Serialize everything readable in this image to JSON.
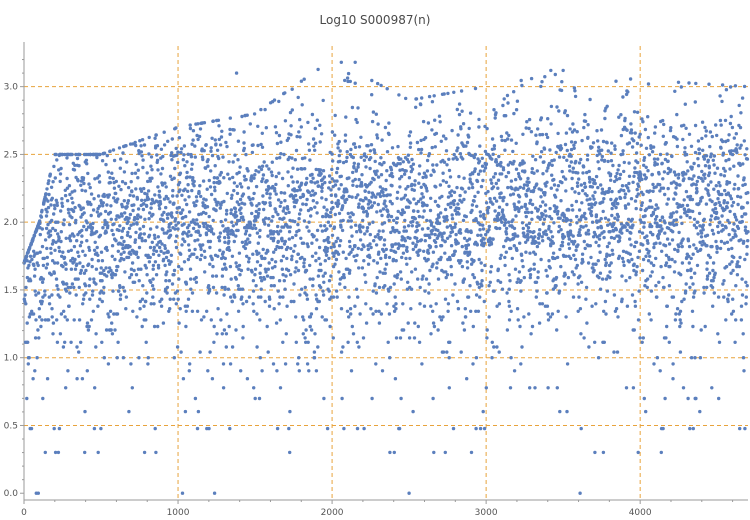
{
  "chart_data": {
    "type": "scatter",
    "title": "Log10 S000987(n)",
    "xlabel": "",
    "ylabel": "",
    "xlim": [
      0,
      4700
    ],
    "ylim": [
      -0.05,
      3.3
    ],
    "x_ticks": [
      0,
      1000,
      2000,
      3000,
      4000
    ],
    "x_tick_labels": [
      "0",
      "1000",
      "2000",
      "3000",
      "4000"
    ],
    "y_ticks": [
      0.0,
      0.5,
      1.0,
      1.5,
      2.0,
      2.5,
      3.0
    ],
    "y_tick_labels": [
      "0.0",
      "0.5",
      "1.0",
      "1.5",
      "2.0",
      "2.5",
      "3.0"
    ],
    "grid": true,
    "grid_x": [
      1000,
      2000,
      3000,
      4000
    ],
    "grid_y": [
      0.5,
      1.0,
      1.5,
      2.0,
      2.5,
      3.0
    ],
    "marker_color": "#5b7fbd",
    "grid_color": "#e8a33c",
    "n_points": 4700,
    "series": [
      {
        "values_summary": "one point per n = 1..4700; dense band between about 1.5 and 2.5 rising slowly with n, sparse points down to 0.0 and up to about 3.2",
        "y_envelope": [
          {
            "x": 0,
            "low": 0.0,
            "high": 1.7
          },
          {
            "x": 100,
            "low": 0.0,
            "high": 2.0
          },
          {
            "x": 200,
            "low": 0.3,
            "high": 2.5
          },
          {
            "x": 500,
            "low": 0.3,
            "high": 2.5
          },
          {
            "x": 1000,
            "low": 0.0,
            "high": 2.7
          },
          {
            "x": 1500,
            "low": 0.3,
            "high": 2.8
          },
          {
            "x": 2000,
            "low": 0.3,
            "high": 3.2
          },
          {
            "x": 2500,
            "low": 0.0,
            "high": 2.9
          },
          {
            "x": 3000,
            "low": 0.3,
            "high": 3.0
          },
          {
            "x": 3500,
            "low": 0.0,
            "high": 3.1
          },
          {
            "x": 4000,
            "low": 0.3,
            "high": 3.05
          },
          {
            "x": 4700,
            "low": 0.3,
            "high": 3.0
          }
        ],
        "outliers": [
          {
            "x": 1380,
            "y": 3.1
          },
          {
            "x": 2060,
            "y": 3.18
          },
          {
            "x": 2150,
            "y": 3.18
          },
          {
            "x": 3420,
            "y": 3.12
          },
          {
            "x": 3500,
            "y": 3.12
          }
        ]
      }
    ]
  }
}
